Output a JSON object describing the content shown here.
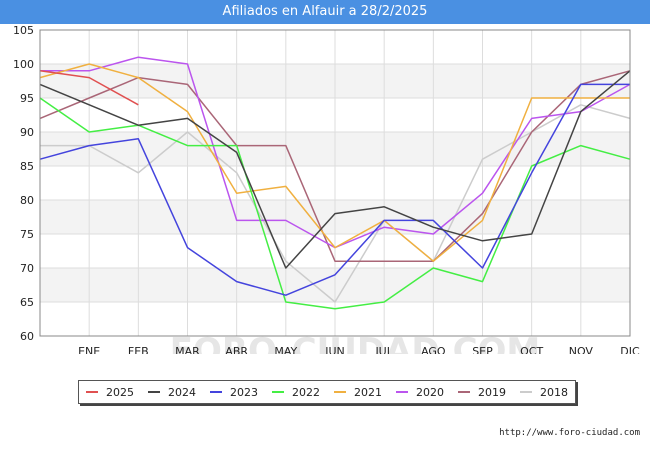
{
  "chart_data": {
    "type": "line",
    "title": "Afiliados en Alfauir a 28/2/2025",
    "categories": [
      "",
      "ENE",
      "FEB",
      "MAR",
      "ABR",
      "MAY",
      "JUN",
      "JUL",
      "AGO",
      "SEP",
      "OCT",
      "NOV",
      "DIC"
    ],
    "ylim": [
      60,
      105
    ],
    "yticks": [
      60,
      65,
      70,
      75,
      80,
      85,
      90,
      95,
      100,
      105
    ],
    "grid": true,
    "legend_position": "bottom",
    "watermark": "FORO-CIUDAD.COM",
    "series": [
      {
        "name": "2025",
        "color": "#e05050",
        "values": [
          99,
          98,
          94,
          null,
          null,
          null,
          null,
          null,
          null,
          null,
          null,
          null,
          null
        ]
      },
      {
        "name": "2024",
        "color": "#444444",
        "values": [
          97,
          94,
          91,
          92,
          87,
          70,
          78,
          79,
          76,
          74,
          75,
          93,
          99
        ]
      },
      {
        "name": "2023",
        "color": "#4444dd",
        "values": [
          86,
          88,
          89,
          73,
          68,
          66,
          69,
          77,
          77,
          70,
          84,
          97,
          97
        ]
      },
      {
        "name": "2022",
        "color": "#44ee44",
        "values": [
          95,
          90,
          91,
          88,
          88,
          65,
          64,
          65,
          70,
          68,
          85,
          88,
          86
        ]
      },
      {
        "name": "2021",
        "color": "#f0b040",
        "values": [
          98,
          100,
          98,
          93,
          81,
          82,
          73,
          77,
          71,
          77,
          95,
          95,
          95
        ]
      },
      {
        "name": "2020",
        "color": "#bb55ee",
        "values": [
          99,
          99,
          101,
          100,
          77,
          77,
          73,
          76,
          75,
          81,
          92,
          93,
          97
        ]
      },
      {
        "name": "2019",
        "color": "#aa6677",
        "values": [
          92,
          95,
          98,
          97,
          88,
          88,
          71,
          71,
          71,
          78,
          90,
          97,
          99
        ]
      },
      {
        "name": "2018",
        "color": "#cccccc",
        "values": [
          88,
          88,
          84,
          90,
          84,
          71,
          65,
          77,
          71,
          86,
          90,
          94,
          92
        ]
      }
    ]
  },
  "footer": {
    "url": "http://www.foro-ciudad.com"
  }
}
